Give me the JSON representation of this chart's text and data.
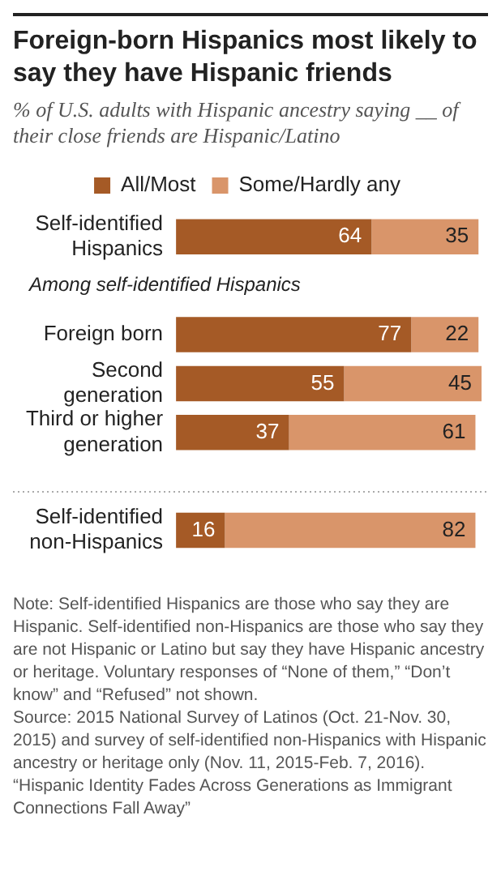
{
  "chart_data": {
    "type": "bar",
    "orientation": "horizontal",
    "stacked": true,
    "title": "Foreign-born  Hispanics most likely to say they have Hispanic friends",
    "subtitle": "% of U.S. adults with Hispanic ancestry saying __ of their close friends are Hispanic/Latino",
    "categories": [
      "Self-identified Hispanics",
      null,
      "Foreign born",
      "Second generation",
      "Third or higher generation",
      null,
      "Self-identified non-Hispanics"
    ],
    "series": [
      {
        "name": "All/Most",
        "color": "#a55a26",
        "values": [
          64,
          null,
          77,
          55,
          37,
          null,
          16
        ]
      },
      {
        "name": "Some/Hardly any",
        "color": "#d9956a",
        "values": [
          35,
          null,
          22,
          45,
          61,
          null,
          82
        ]
      }
    ],
    "xlim": [
      0,
      100
    ],
    "data_labels": true,
    "legend": "top",
    "grid": false,
    "tick_labels": "y",
    "annotations": [
      "Among self-identified Hispanics",
      "Note: Self-identified Hispanics are those who say they are Hispanic. Self-identified non-Hispanics are those who say they are not Hispanic or Latino but say they have Hispanic ancestry or heritage. Voluntary responses of “None of them,” “Don’t know” and “Refused” not shown.",
      "Source: 2015 National Survey of Latinos (Oct. 21-Nov. 30, 2015) and survey of self-identified non-Hispanics with Hispanic ancestry or heritage only (Nov. 11, 2015-Feb. 7, 2016). “Hispanic Identity Fades Across Generations as Immigrant Connections Fall Away”"
    ]
  }
}
